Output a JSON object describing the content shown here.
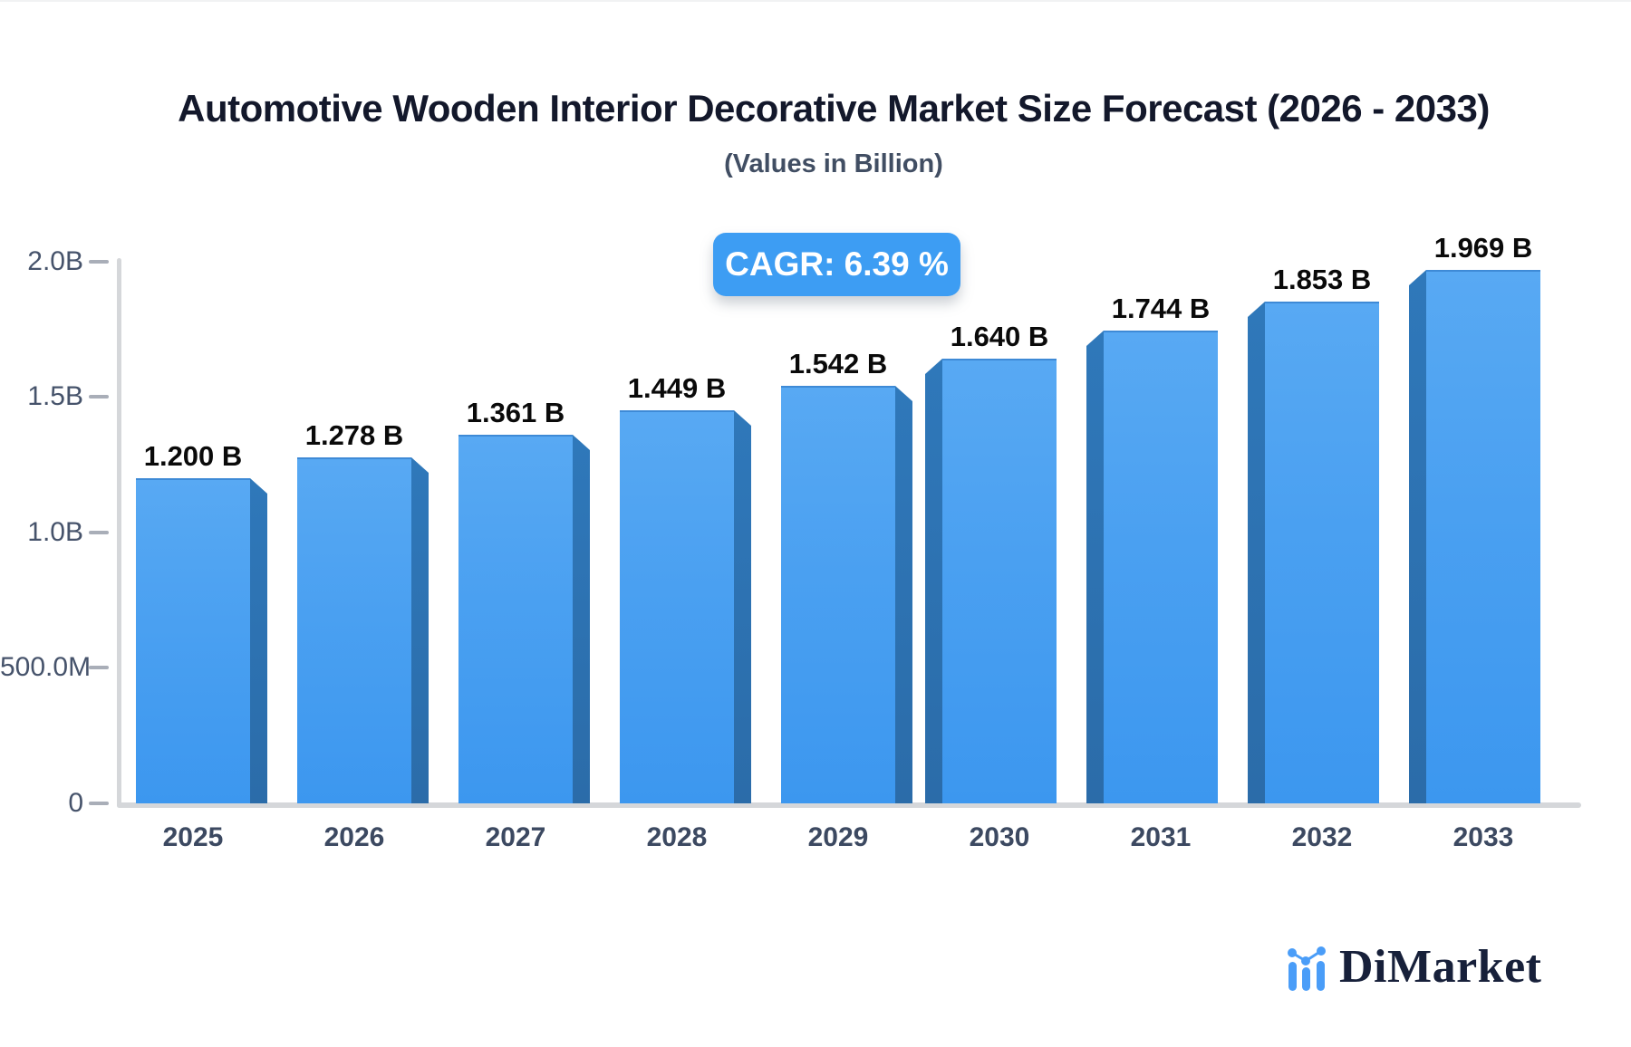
{
  "header": {
    "title": "Automotive Wooden Interior Decorative Market Size Forecast (2026 - 2033)",
    "subtitle": "(Values in Billion)"
  },
  "badge": {
    "label": "CAGR: 6.39 %",
    "color": "#3d9df3"
  },
  "colors": {
    "bar_face_top": "#58a9f3",
    "bar_face_bottom": "#3c97ef",
    "bar_side": "#2d74b5",
    "axis": "#d5d7da",
    "tick_text": "#46536b",
    "category_text": "#3c4961",
    "value_text": "#0a0a0a"
  },
  "y_axis": {
    "ticks": [
      {
        "label": "2.0B",
        "value": 2.0
      },
      {
        "label": "1.5B",
        "value": 1.5
      },
      {
        "label": "1.0B",
        "value": 1.0
      },
      {
        "label": "500.0M",
        "value": 0.5
      },
      {
        "label": "0",
        "value": 0
      }
    ]
  },
  "bars": [
    {
      "year": "2025",
      "value": 1.2,
      "label": "1.200 B"
    },
    {
      "year": "2026",
      "value": 1.278,
      "label": "1.278 B"
    },
    {
      "year": "2027",
      "value": 1.361,
      "label": "1.361 B"
    },
    {
      "year": "2028",
      "value": 1.449,
      "label": "1.449 B"
    },
    {
      "year": "2029",
      "value": 1.542,
      "label": "1.542 B"
    },
    {
      "year": "2030",
      "value": 1.64,
      "label": "1.640 B"
    },
    {
      "year": "2031",
      "value": 1.744,
      "label": "1.744 B"
    },
    {
      "year": "2032",
      "value": 1.853,
      "label": "1.853 B"
    },
    {
      "year": "2033",
      "value": 1.969,
      "label": "1.969 B"
    }
  ],
  "logo": {
    "brand": "DiMarket"
  },
  "chart_data": {
    "type": "bar",
    "title": "Automotive Wooden Interior Decorative Market Size Forecast (2026 - 2033)",
    "subtitle": "(Values in Billion)",
    "annotation": "CAGR: 6.39 %",
    "categories": [
      "2025",
      "2026",
      "2027",
      "2028",
      "2029",
      "2030",
      "2031",
      "2032",
      "2033"
    ],
    "values": [
      1.2,
      1.278,
      1.361,
      1.449,
      1.542,
      1.64,
      1.744,
      1.853,
      1.969
    ],
    "unit": "Billion",
    "xlabel": "",
    "ylabel": "",
    "ylim": [
      0,
      2.0
    ],
    "ytick_labels": [
      "0",
      "500.0M",
      "1.0B",
      "1.5B",
      "2.0B"
    ],
    "grid": false,
    "legend": false,
    "bar_style": "3d-bevel-blue"
  }
}
